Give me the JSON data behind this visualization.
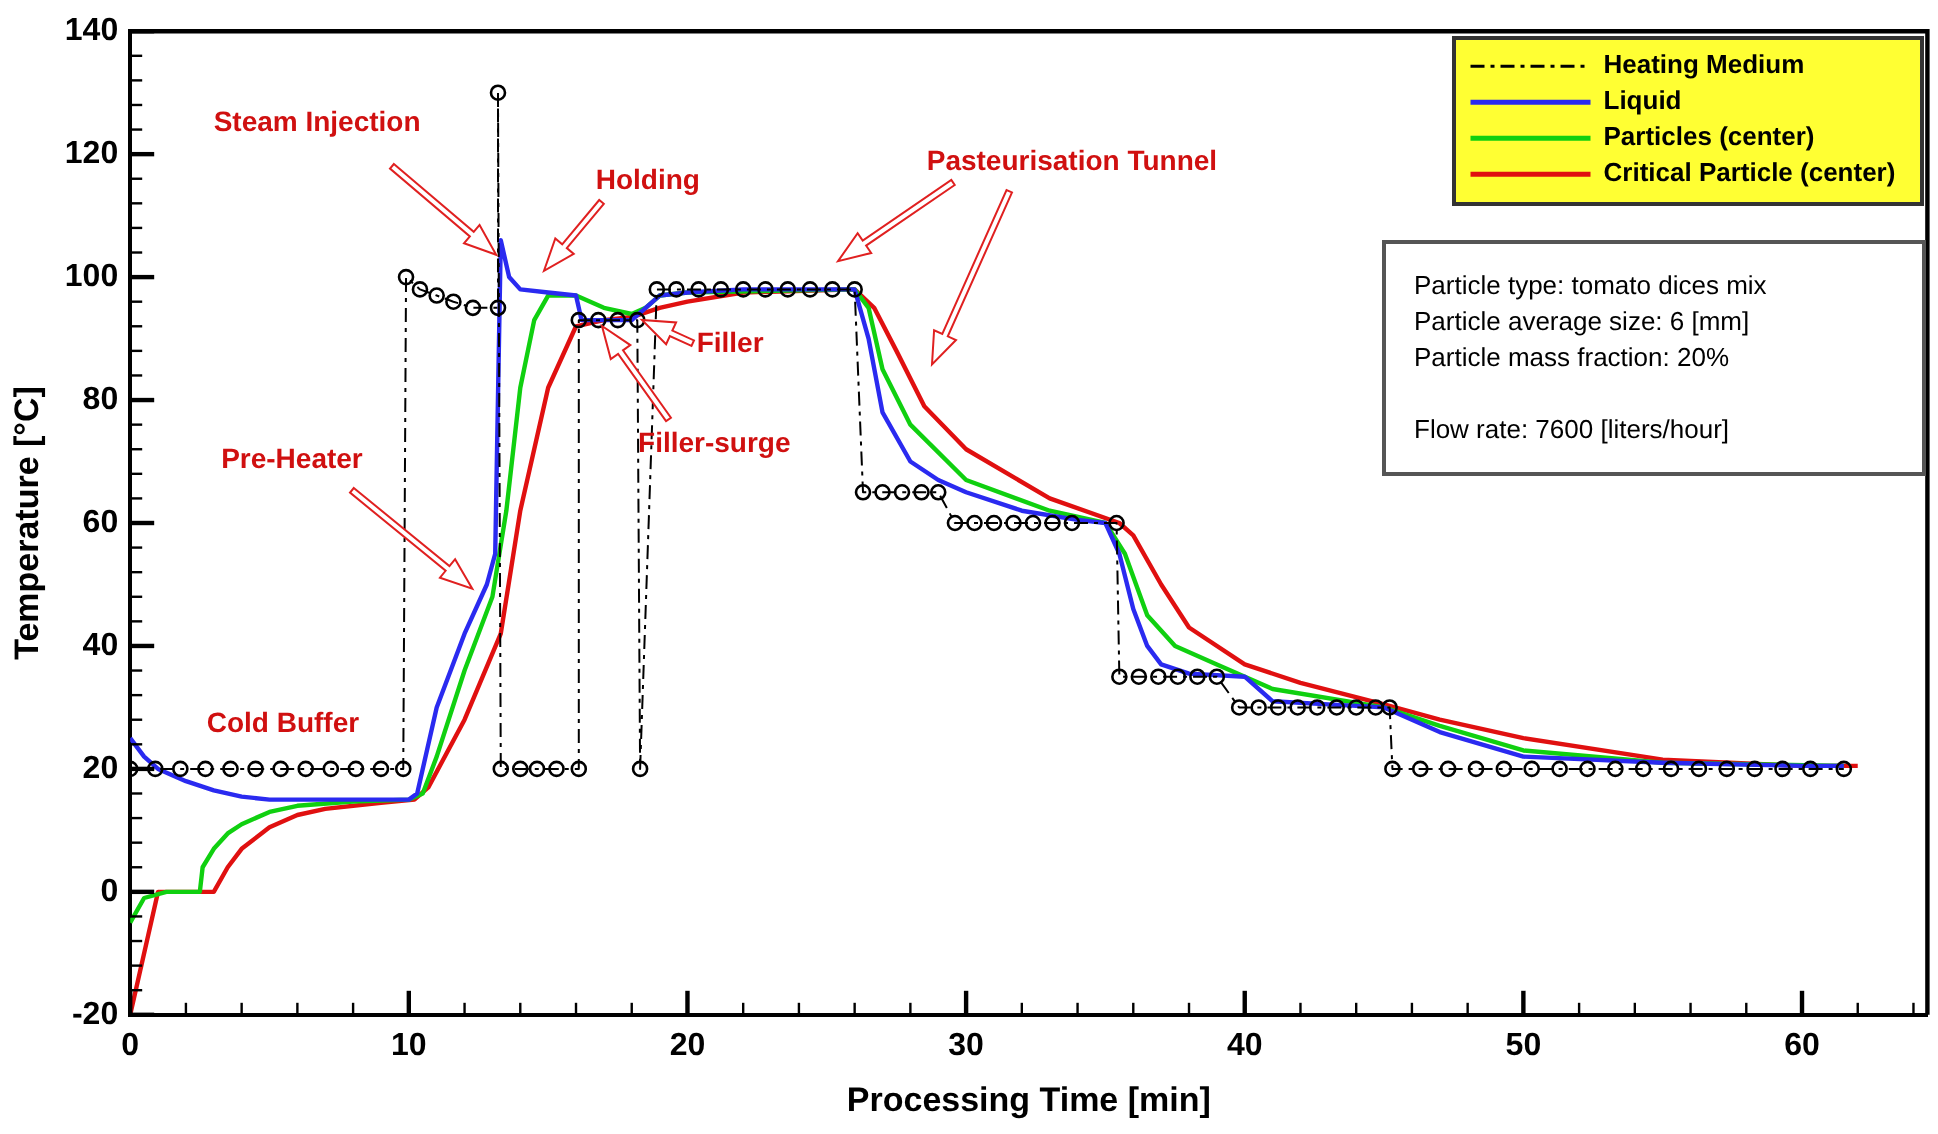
{
  "chart_data": {
    "type": "line",
    "xlabel": "Processing Time [min]",
    "ylabel": "Temperature [°C]",
    "xlim": [
      0,
      64.5
    ],
    "xticks": [
      0,
      10,
      20,
      30,
      40,
      50,
      60
    ],
    "ylim": [
      -20,
      140
    ],
    "yticks": [
      -20,
      0,
      20,
      40,
      60,
      80,
      100,
      120,
      140
    ],
    "grid": false,
    "legend": "top right",
    "series": [
      {
        "name": "Heating Medium",
        "color": "#000000",
        "marker": "circle",
        "line_style": "dashed",
        "x": [
          0,
          0.9,
          1.8,
          2.7,
          3.6,
          4.5,
          5.4,
          6.3,
          7.2,
          8.1,
          9.0,
          9.8,
          9.9,
          10.4,
          11.0,
          11.6,
          12.3,
          13.2,
          13.2,
          13.3,
          14.0,
          14.6,
          15.3,
          16.1,
          16.1,
          16.8,
          17.5,
          18.2,
          18.3,
          18.9,
          19.6,
          20.4,
          21.2,
          22.0,
          22.8,
          23.6,
          24.4,
          25.2,
          26.0,
          26.3,
          27.0,
          27.7,
          28.4,
          29.0,
          29.6,
          30.3,
          31.0,
          31.7,
          32.4,
          33.1,
          33.8,
          35.4,
          35.5,
          36.2,
          36.9,
          37.6,
          38.3,
          39.0,
          39.8,
          40.5,
          41.2,
          41.9,
          42.6,
          43.3,
          44.0,
          44.7,
          45.2,
          45.3,
          46.3,
          47.3,
          48.3,
          49.3,
          50.3,
          51.3,
          52.3,
          53.3,
          54.3,
          55.3,
          56.3,
          57.3,
          58.3,
          59.3,
          60.3,
          61.5
        ],
        "values": [
          20,
          20,
          20,
          20,
          20,
          20,
          20,
          20,
          20,
          20,
          20,
          20,
          100,
          98,
          97,
          96,
          95,
          95,
          130,
          20,
          20,
          20,
          20,
          20,
          93,
          93,
          93,
          93,
          20,
          98,
          98,
          98,
          98,
          98,
          98,
          98,
          98,
          98,
          98,
          65,
          65,
          65,
          65,
          65,
          60,
          60,
          60,
          60,
          60,
          60,
          60,
          60,
          35,
          35,
          35,
          35,
          35,
          35,
          30,
          30,
          30,
          30,
          30,
          30,
          30,
          30,
          30,
          20,
          20,
          20,
          20,
          20,
          20,
          20,
          20,
          20,
          20,
          20,
          20,
          20,
          20,
          20,
          20,
          20
        ]
      },
      {
        "name": "Liquid",
        "color": "#2a2af0",
        "marker": "none",
        "x": [
          0,
          0.5,
          1,
          2,
          3,
          4,
          5,
          8,
          10,
          10.3,
          11,
          12,
          12.8,
          13.1,
          13.3,
          13.6,
          14,
          15,
          16,
          16.2,
          17,
          18,
          18.5,
          19,
          20,
          22,
          26,
          26.5,
          27,
          28,
          29,
          30,
          32,
          34,
          35,
          35.5,
          36,
          36.5,
          37,
          38,
          40,
          41,
          43,
          45,
          47,
          50,
          55,
          60,
          61.5
        ],
        "values": [
          25,
          22,
          20,
          18,
          16.5,
          15.5,
          15,
          15,
          15,
          16,
          30,
          42,
          50,
          55,
          106,
          100,
          98,
          97.5,
          97,
          93,
          93,
          93,
          95,
          97,
          97.5,
          98,
          98,
          90,
          78,
          70,
          67,
          65,
          62,
          60.5,
          60,
          55,
          46,
          40,
          37,
          35.5,
          35,
          31,
          30.5,
          30,
          26,
          22,
          21,
          20.5,
          20.5
        ]
      },
      {
        "name": "Particles (center)",
        "color": "#10d010",
        "marker": "none",
        "x": [
          0,
          0.5,
          1.3,
          2.5,
          2.6,
          3,
          3.5,
          4,
          5,
          6,
          8,
          10,
          10.5,
          11,
          12,
          13,
          13.5,
          14,
          14.5,
          15,
          16,
          17,
          18,
          18.5,
          19,
          20,
          26,
          26.5,
          27,
          28,
          30,
          33,
          35,
          35.7,
          36.5,
          37.5,
          39,
          41,
          45,
          47,
          50,
          55,
          61.5
        ],
        "values": [
          -5,
          -1,
          0,
          0,
          4,
          7,
          9.5,
          11,
          13,
          14,
          14.7,
          15,
          16,
          22,
          36,
          48,
          62,
          82,
          93,
          97,
          97,
          95,
          94,
          95,
          97,
          97.5,
          98,
          95,
          85,
          76,
          67,
          62,
          60,
          55,
          45,
          40,
          37,
          33,
          30,
          27,
          23,
          21,
          20.5
        ]
      },
      {
        "name": "Critical Particle (center)",
        "color": "#e01010",
        "marker": "none",
        "x": [
          0,
          1,
          3,
          3.5,
          4,
          5,
          6,
          7,
          9,
          10.2,
          10.7,
          12,
          13.3,
          14,
          15,
          16,
          17,
          18,
          19,
          20,
          22,
          26,
          26.7,
          27.5,
          28.5,
          30,
          33,
          35.5,
          36,
          37,
          38,
          40,
          42,
          45,
          47,
          50,
          55,
          60,
          62
        ],
        "values": [
          -20,
          0,
          0,
          4,
          7,
          10.5,
          12.5,
          13.5,
          14.5,
          15,
          17,
          28,
          42,
          62,
          82,
          92,
          93,
          93.5,
          95,
          96,
          97.5,
          98,
          95,
          88,
          79,
          72,
          64,
          60,
          58,
          50,
          43,
          37,
          34,
          30.5,
          28,
          25,
          21.5,
          20.5,
          20.5
        ]
      }
    ],
    "annotations": [
      {
        "text": "Filler",
        "x": 18.3,
        "y": 93
      },
      "Steam Injection",
      "Holding",
      "Pre-Heater",
      "Cold Buffer",
      "Filler-surge",
      "Pasteurisation Tunnel",
      "Particle type:  tomato dices mix",
      "Particle average size:  6 [mm]",
      "Particle mass fraction:  20%",
      "Flow rate: 7600 [liters/hour]"
    ]
  }
}
